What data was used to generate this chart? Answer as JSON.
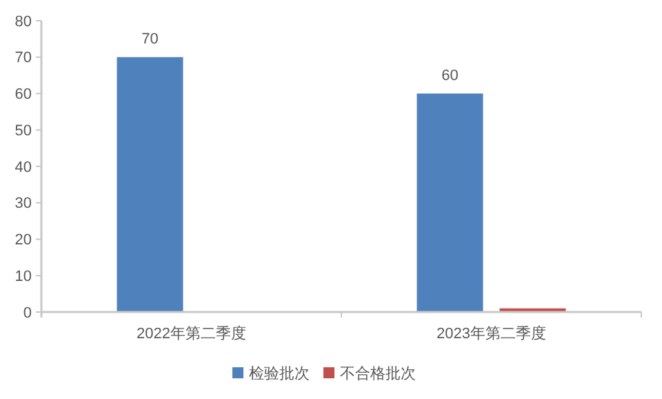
{
  "chart_data": {
    "type": "bar",
    "categories": [
      "2022年第二季度",
      "2023年第二季度"
    ],
    "series": [
      {
        "name": "检验批次",
        "color": "#4f81bd",
        "values": [
          70,
          60
        ],
        "value_labels": [
          "70",
          "60"
        ]
      },
      {
        "name": "不合格批次",
        "color": "#c0504d",
        "values": [
          0,
          1
        ],
        "value_labels": [
          null,
          null
        ]
      }
    ],
    "ylim": [
      0,
      80
    ],
    "yticks": [
      0,
      10,
      20,
      30,
      40,
      50,
      60,
      70,
      80
    ],
    "grid": false,
    "legend": "bottom"
  }
}
